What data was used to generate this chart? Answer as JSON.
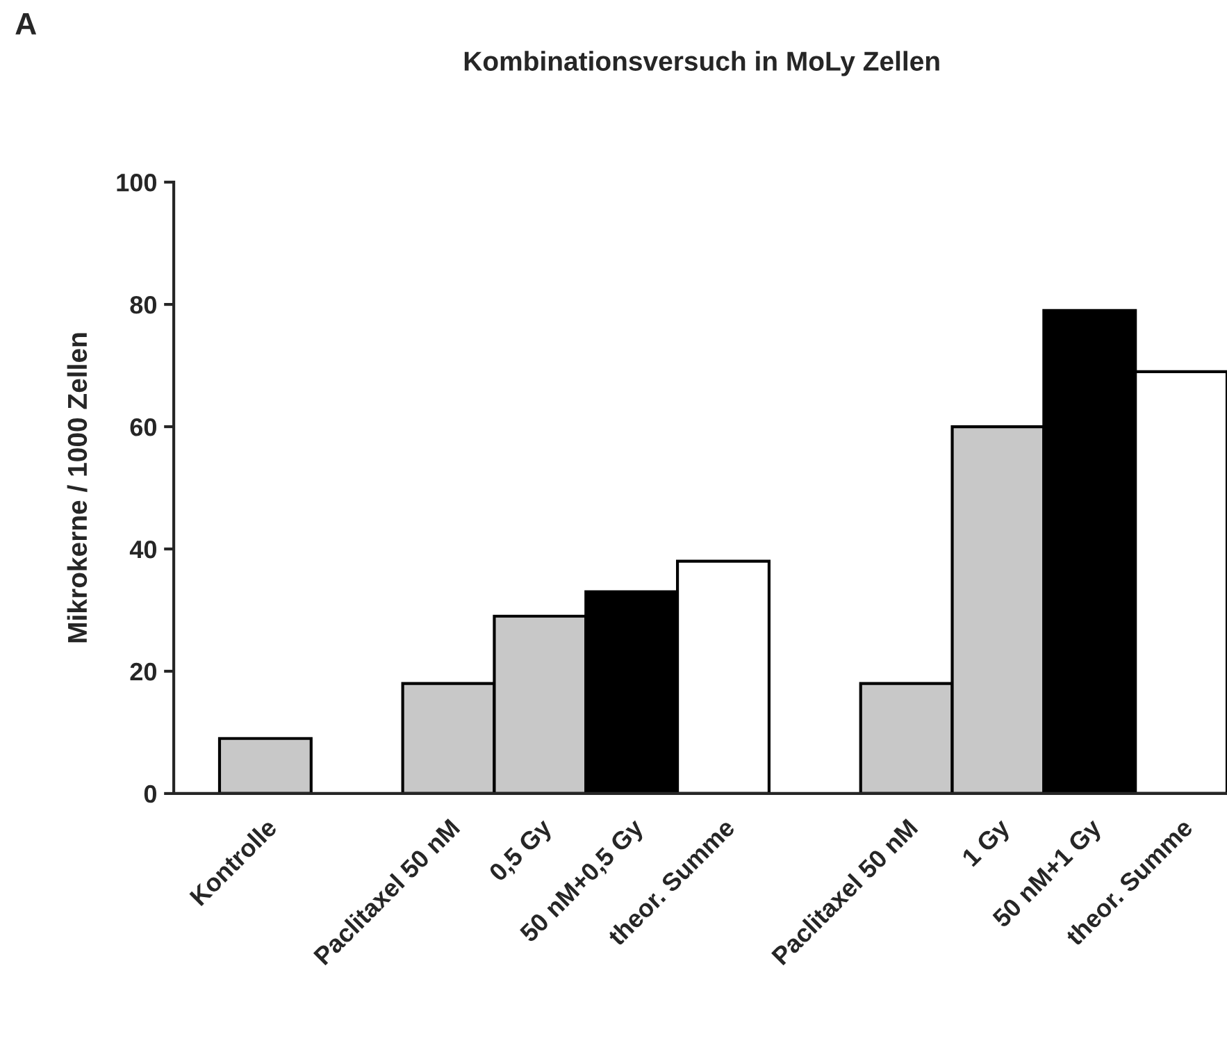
{
  "chart_data": {
    "type": "bar",
    "title": "Kombinationsversuch in MoLy Zellen",
    "ylabel": "Mikrokerne / 1000 Zellen",
    "annotations": [
      "A"
    ],
    "categories": [
      "Kontrolle",
      null,
      "Paclitaxel 50 nM",
      "0,5 Gy",
      "50 nM+0,5 Gy",
      "theor. Summe",
      null,
      "Paclitaxel 50 nM",
      "1 Gy",
      "50 nM+1 Gy",
      "theor. Summe"
    ],
    "values": [
      9,
      null,
      18,
      29,
      33,
      38,
      null,
      18,
      60,
      79,
      69
    ],
    "colors": [
      "#c8c8c8",
      "#ffffff",
      "#c8c8c8",
      "#c8c8c8",
      "#000000",
      "#ffffff",
      "#ffffff",
      "#c8c8c8",
      "#c8c8c8",
      "#000000",
      "#ffffff"
    ],
    "ylim": [
      0,
      100
    ],
    "yticks": [
      0,
      20,
      40,
      60,
      80,
      100
    ],
    "grid": false,
    "legend": false
  }
}
